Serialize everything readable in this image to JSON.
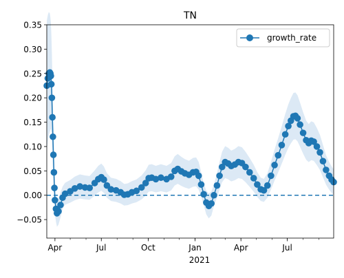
{
  "chart_data": {
    "type": "line",
    "title": "TN",
    "xlabel": "",
    "ylabel": "",
    "x_range": [
      "2020-03-16",
      "2021-09-30"
    ],
    "ylim": [
      -0.088,
      0.35
    ],
    "y_ticks": [
      -0.05,
      0.0,
      0.05,
      0.1,
      0.15,
      0.2,
      0.25,
      0.3,
      0.35
    ],
    "y_tick_labels": [
      "−0.05",
      "0.00",
      "0.05",
      "0.10",
      "0.15",
      "0.20",
      "0.25",
      "0.30",
      "0.35"
    ],
    "x_ticks": [
      {
        "date": "2020-04-01",
        "label": "Apr"
      },
      {
        "date": "2020-07-01",
        "label": "Jul"
      },
      {
        "date": "2020-10-01",
        "label": "Oct"
      },
      {
        "date": "2021-01-01",
        "label": "Jan"
      },
      {
        "date": "2021-04-01",
        "label": "Apr"
      },
      {
        "date": "2021-07-01",
        "label": "Jul"
      }
    ],
    "x_year_label": "2021",
    "legend_position": "top-right",
    "reference_line": 0,
    "grid": false,
    "series": [
      {
        "name": "growth_rate",
        "color": "#1f77b4",
        "band_color": "#dce9f5",
        "points": [
          [
            "2020-03-16",
            0.225
          ],
          [
            "2020-03-18",
            0.24
          ],
          [
            "2020-03-20",
            0.25
          ],
          [
            "2020-03-22",
            0.252
          ],
          [
            "2020-03-23",
            0.25
          ],
          [
            "2020-03-24",
            0.245
          ],
          [
            "2020-03-25",
            0.228
          ],
          [
            "2020-03-26",
            0.2
          ],
          [
            "2020-03-27",
            0.16
          ],
          [
            "2020-03-28",
            0.12
          ],
          [
            "2020-03-29",
            0.083
          ],
          [
            "2020-03-30",
            0.047
          ],
          [
            "2020-03-31",
            0.015
          ],
          [
            "2020-04-01",
            -0.01
          ],
          [
            "2020-04-03",
            -0.028
          ],
          [
            "2020-04-05",
            -0.037
          ],
          [
            "2020-04-08",
            -0.033
          ],
          [
            "2020-04-12",
            -0.02
          ],
          [
            "2020-04-16",
            -0.005
          ],
          [
            "2020-04-21",
            0.003
          ],
          [
            "2020-05-01",
            0.008
          ],
          [
            "2020-05-10",
            0.014
          ],
          [
            "2020-05-20",
            0.018
          ],
          [
            "2020-05-30",
            0.016
          ],
          [
            "2020-06-08",
            0.015
          ],
          [
            "2020-06-18",
            0.025
          ],
          [
            "2020-06-25",
            0.033
          ],
          [
            "2020-07-01",
            0.037
          ],
          [
            "2020-07-06",
            0.032
          ],
          [
            "2020-07-12",
            0.02
          ],
          [
            "2020-07-20",
            0.012
          ],
          [
            "2020-07-30",
            0.01
          ],
          [
            "2020-08-08",
            0.006
          ],
          [
            "2020-08-15",
            0.001
          ],
          [
            "2020-08-22",
            0.002
          ],
          [
            "2020-08-30",
            0.006
          ],
          [
            "2020-09-08",
            0.009
          ],
          [
            "2020-09-18",
            0.016
          ],
          [
            "2020-09-26",
            0.025
          ],
          [
            "2020-10-02",
            0.035
          ],
          [
            "2020-10-08",
            0.036
          ],
          [
            "2020-10-16",
            0.033
          ],
          [
            "2020-10-26",
            0.036
          ],
          [
            "2020-11-06",
            0.033
          ],
          [
            "2020-11-15",
            0.038
          ],
          [
            "2020-11-22",
            0.05
          ],
          [
            "2020-11-28",
            0.054
          ],
          [
            "2020-12-05",
            0.049
          ],
          [
            "2020-12-12",
            0.045
          ],
          [
            "2020-12-20",
            0.042
          ],
          [
            "2020-12-28",
            0.047
          ],
          [
            "2021-01-03",
            0.048
          ],
          [
            "2021-01-08",
            0.04
          ],
          [
            "2021-01-13",
            0.022
          ],
          [
            "2021-01-18",
            0.002
          ],
          [
            "2021-01-23",
            -0.015
          ],
          [
            "2021-01-28",
            -0.022
          ],
          [
            "2021-02-02",
            -0.017
          ],
          [
            "2021-02-07",
            0.0
          ],
          [
            "2021-02-13",
            0.02
          ],
          [
            "2021-02-18",
            0.04
          ],
          [
            "2021-02-23",
            0.058
          ],
          [
            "2021-03-01",
            0.068
          ],
          [
            "2021-03-07",
            0.065
          ],
          [
            "2021-03-13",
            0.06
          ],
          [
            "2021-03-20",
            0.063
          ],
          [
            "2021-03-27",
            0.068
          ],
          [
            "2021-04-03",
            0.066
          ],
          [
            "2021-04-10",
            0.058
          ],
          [
            "2021-04-18",
            0.047
          ],
          [
            "2021-04-26",
            0.035
          ],
          [
            "2021-05-03",
            0.022
          ],
          [
            "2021-05-10",
            0.012
          ],
          [
            "2021-05-16",
            0.01
          ],
          [
            "2021-05-23",
            0.02
          ],
          [
            "2021-05-30",
            0.04
          ],
          [
            "2021-06-06",
            0.062
          ],
          [
            "2021-06-13",
            0.082
          ],
          [
            "2021-06-20",
            0.103
          ],
          [
            "2021-06-27",
            0.125
          ],
          [
            "2021-07-03",
            0.142
          ],
          [
            "2021-07-08",
            0.153
          ],
          [
            "2021-07-13",
            0.162
          ],
          [
            "2021-07-17",
            0.163
          ],
          [
            "2021-07-21",
            0.158
          ],
          [
            "2021-07-26",
            0.145
          ],
          [
            "2021-08-01",
            0.128
          ],
          [
            "2021-08-07",
            0.113
          ],
          [
            "2021-08-12",
            0.107
          ],
          [
            "2021-08-17",
            0.112
          ],
          [
            "2021-08-22",
            0.11
          ],
          [
            "2021-08-28",
            0.1
          ],
          [
            "2021-09-03",
            0.088
          ],
          [
            "2021-09-09",
            0.07
          ],
          [
            "2021-09-15",
            0.052
          ],
          [
            "2021-09-21",
            0.04
          ],
          [
            "2021-09-26",
            0.032
          ],
          [
            "2021-09-30",
            0.027
          ]
        ]
      }
    ]
  }
}
